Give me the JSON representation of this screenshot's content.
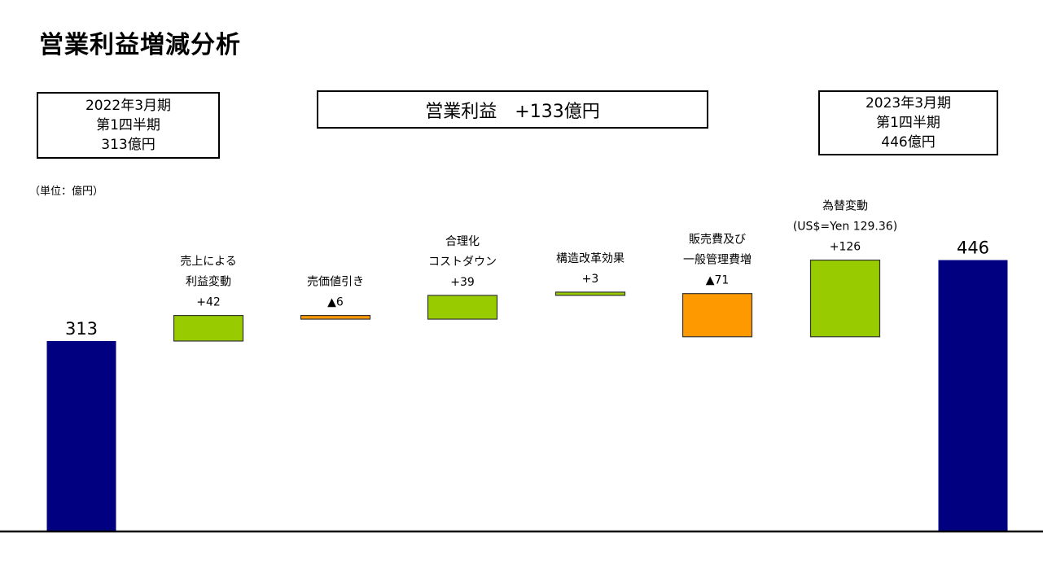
{
  "title": "営業利益増減分析",
  "box_left": {
    "line1": "2022年3月期",
    "line2": "第1四半期",
    "line3": "313億円"
  },
  "box_center": {
    "text": "営業利益　+133億円"
  },
  "box_right": {
    "line1": "2023年3月期",
    "line2": "第1四半期",
    "line3": "446億円"
  },
  "unit": "（単位：億円）",
  "colors": {
    "total": "#000080",
    "increase": "#99cc00",
    "decrease": "#ff9900"
  },
  "chart_data": {
    "type": "bar",
    "subtype": "waterfall",
    "categories": [
      [
        "313"
      ],
      [
        "売上による",
        "利益変動",
        "+42"
      ],
      [
        "売価値引き",
        "▲6"
      ],
      [
        "合理化",
        "コストダウン",
        "+39"
      ],
      [
        "構造改革効果",
        "+3"
      ],
      [
        "販売費及び",
        "一般管理費増",
        "▲71"
      ],
      [
        "為替変動",
        "(US$=Yen 129.36)",
        "+126"
      ],
      [
        "446"
      ]
    ],
    "values": [
      313,
      42,
      -6,
      39,
      3,
      -71,
      126,
      446
    ],
    "kinds": [
      "total",
      "increase",
      "decrease",
      "increase",
      "increase",
      "decrease",
      "increase",
      "total"
    ]
  }
}
